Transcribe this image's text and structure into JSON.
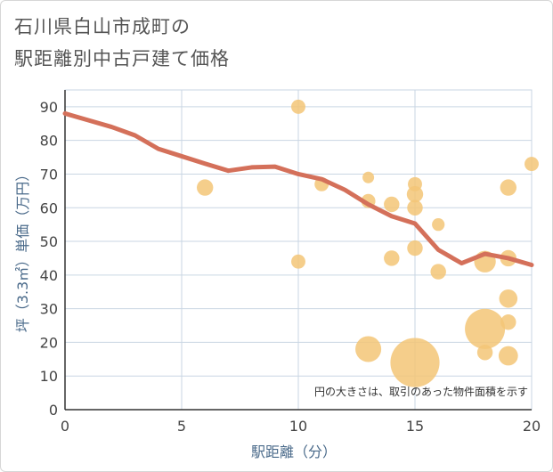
{
  "title_lines": [
    "石川県白山市成町の",
    "駅距離別中古戸建て価格"
  ],
  "chart_data": {
    "type": "scatter",
    "title": "石川県白山市成町の駅距離別中古戸建て価格",
    "xlabel": "駅距離（分）",
    "ylabel": "坪（3.3㎡）単価（万円）",
    "xlim": [
      0,
      20
    ],
    "ylim": [
      0,
      95
    ],
    "xticks": [
      0,
      5,
      10,
      15,
      20
    ],
    "yticks": [
      0,
      10,
      20,
      30,
      40,
      50,
      60,
      70,
      80,
      90
    ],
    "grid": true,
    "note": "円の大きさは、取引のあった物件面積を示す",
    "bubble_color": "#f3c577",
    "line_color": "#d4705a",
    "points": [
      {
        "x": 6,
        "y": 66,
        "size": 2
      },
      {
        "x": 10,
        "y": 90,
        "size": 1.5
      },
      {
        "x": 10,
        "y": 44,
        "size": 1.5
      },
      {
        "x": 11,
        "y": 67,
        "size": 1.5
      },
      {
        "x": 13,
        "y": 69,
        "size": 1
      },
      {
        "x": 13,
        "y": 62,
        "size": 1.5
      },
      {
        "x": 13,
        "y": 18,
        "size": 5
      },
      {
        "x": 14,
        "y": 61,
        "size": 1.8
      },
      {
        "x": 14,
        "y": 45,
        "size": 1.8
      },
      {
        "x": 15,
        "y": 67,
        "size": 1.5
      },
      {
        "x": 15,
        "y": 64,
        "size": 2
      },
      {
        "x": 15,
        "y": 60,
        "size": 1.8
      },
      {
        "x": 15,
        "y": 48,
        "size": 1.8
      },
      {
        "x": 15,
        "y": 14,
        "size": 18
      },
      {
        "x": 16,
        "y": 55,
        "size": 1.2
      },
      {
        "x": 16,
        "y": 41,
        "size": 1.8
      },
      {
        "x": 18,
        "y": 44,
        "size": 3.5
      },
      {
        "x": 18,
        "y": 24,
        "size": 12
      },
      {
        "x": 18,
        "y": 17,
        "size": 1.8
      },
      {
        "x": 19,
        "y": 66,
        "size": 2
      },
      {
        "x": 19,
        "y": 45,
        "size": 2
      },
      {
        "x": 19,
        "y": 33,
        "size": 2.5
      },
      {
        "x": 19,
        "y": 26,
        "size": 1.8
      },
      {
        "x": 19,
        "y": 16,
        "size": 2.8
      },
      {
        "x": 20,
        "y": 73,
        "size": 1.5
      }
    ],
    "trend": {
      "x": [
        0,
        1,
        2,
        3,
        4,
        5,
        6,
        7,
        8,
        9,
        10,
        11,
        12,
        13,
        14,
        15,
        16,
        17,
        18,
        19,
        20
      ],
      "y": [
        88,
        86,
        84,
        81.5,
        77.5,
        75.3,
        73.1,
        71,
        72,
        72.2,
        70,
        68.5,
        65.3,
        61,
        57.5,
        55.3,
        47.5,
        43.5,
        46.3,
        45,
        43
      ]
    }
  }
}
